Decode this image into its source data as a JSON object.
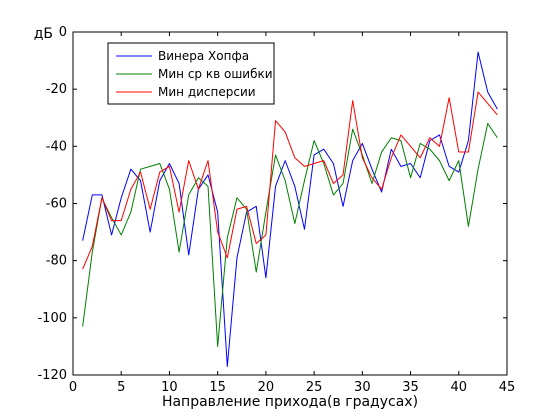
{
  "chart_data": {
    "type": "line",
    "xlabel": "Направление прихода(в градусах)",
    "ylabel": "дБ",
    "xlim": [
      0,
      45
    ],
    "ylim": [
      -120,
      0
    ],
    "xticks": [
      0,
      5,
      10,
      15,
      20,
      25,
      30,
      35,
      40,
      45
    ],
    "yticks": [
      0,
      -20,
      -40,
      -60,
      -80,
      -100,
      -120
    ],
    "x_tick_labels": [
      "0",
      "5",
      "10",
      "15",
      "20",
      "25",
      "30",
      "35",
      "40",
      "45"
    ],
    "y_tick_labels": [
      "0",
      "-20",
      "-40",
      "-60",
      "-80",
      "-100",
      "-120"
    ],
    "grid": false,
    "legend_position": "top-left",
    "x": [
      1,
      2,
      3,
      4,
      5,
      6,
      7,
      8,
      9,
      10,
      11,
      12,
      13,
      14,
      15,
      16,
      17,
      18,
      19,
      20,
      21,
      22,
      23,
      24,
      25,
      26,
      27,
      28,
      29,
      30,
      31,
      32,
      33,
      34,
      35,
      36,
      37,
      38,
      39,
      40,
      41,
      42,
      43,
      44
    ],
    "series": [
      {
        "name": "Винера Хопфа",
        "color": "#0000ff",
        "values": [
          -73,
          -57,
          -57,
          -71,
          -58,
          -48,
          -52,
          -70,
          -52,
          -46,
          -53,
          -78,
          -55,
          -50,
          -63,
          -117,
          -79,
          -63,
          -61,
          -86,
          -54,
          -45,
          -54,
          -69,
          -43,
          -41,
          -46,
          -61,
          -45,
          -39,
          -48,
          -56,
          -41,
          -47,
          -46,
          -51,
          -38,
          -36,
          -47,
          -49,
          -38,
          -7,
          -21,
          -27
        ]
      },
      {
        "name": "Мин ср кв ошибки",
        "color": "#008000",
        "values": [
          -103,
          -77,
          -58,
          -65,
          -71,
          -63,
          -48,
          -47,
          -46,
          -55,
          -77,
          -57,
          -51,
          -54,
          -110,
          -72,
          -58,
          -62,
          -84,
          -63,
          -43,
          -52,
          -67,
          -52,
          -38,
          -46,
          -57,
          -53,
          -34,
          -43,
          -53,
          -42,
          -37,
          -38,
          -51,
          -39,
          -41,
          -45,
          -52,
          -45,
          -68,
          -48,
          -32,
          -37
        ]
      },
      {
        "name": "Мин дисперсии",
        "color": "#ff0000",
        "values": [
          -83,
          -75,
          -58,
          -66,
          -66,
          -55,
          -49,
          -62,
          -49,
          -47,
          -63,
          -45,
          -55,
          -45,
          -70,
          -79,
          -62,
          -61,
          -74,
          -71,
          -31,
          -35,
          -44,
          -47,
          -46,
          -45,
          -53,
          -50,
          -24,
          -44,
          -51,
          -55,
          -44,
          -36,
          -40,
          -44,
          -37,
          -40,
          -23,
          -42,
          -42,
          -21,
          -25,
          -29
        ]
      }
    ]
  }
}
